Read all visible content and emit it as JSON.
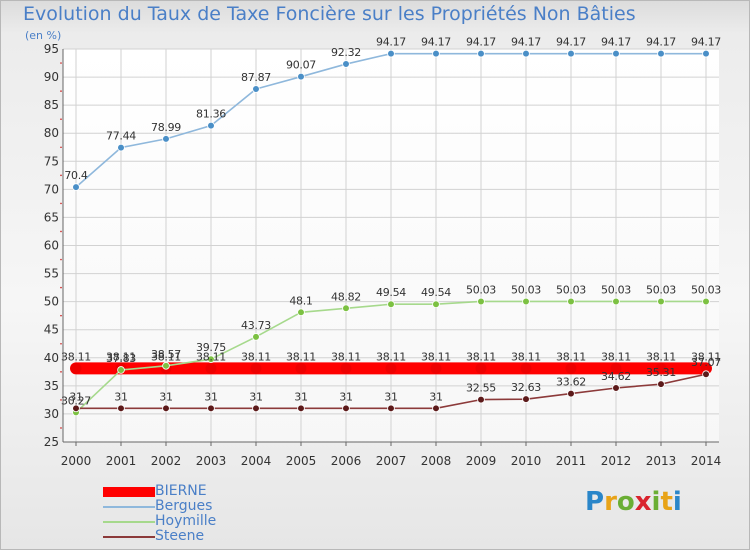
{
  "title": "Evolution du Taux de Taxe Foncière sur les Propriétés Non Bâties",
  "subtitle": "(en %)",
  "logo": {
    "letters": [
      "P",
      "r",
      "o",
      "x",
      "i",
      "t",
      "i"
    ],
    "colors": [
      "#2a86c9",
      "#e8a317",
      "#6aae34",
      "#d9232d",
      "#6aae34",
      "#e8a317",
      "#2a86c9"
    ]
  },
  "chart_data": {
    "type": "line",
    "title": "Evolution du Taux de Taxe Foncière sur les Propriétés Non Bâties",
    "subtitle": "(en %)",
    "xlabel": "",
    "ylabel": "",
    "ylim": [
      25,
      95
    ],
    "yticks": [
      25,
      30,
      35,
      40,
      45,
      50,
      55,
      60,
      65,
      70,
      75,
      80,
      85,
      90,
      95
    ],
    "grid": true,
    "legend_position": "bottom-left",
    "categories": [
      "2000",
      "2001",
      "2002",
      "2003",
      "2004",
      "2005",
      "2006",
      "2007",
      "2008",
      "2009",
      "2010",
      "2011",
      "2012",
      "2013",
      "2014"
    ],
    "series": [
      {
        "name": "BIERNE",
        "color": "#ff0000",
        "marker_color": "#ee0000",
        "bold": true,
        "values": [
          38.11,
          38.11,
          38.11,
          38.11,
          38.11,
          38.11,
          38.11,
          38.11,
          38.11,
          38.11,
          38.11,
          38.11,
          38.11,
          38.11,
          38.11
        ],
        "labels": [
          "38.11",
          "38.11",
          "38.11",
          "38.11",
          "38.11",
          "38.11",
          "38.11",
          "38.11",
          "38.11",
          "38.11",
          "38.11",
          "38.11",
          "38.11",
          "38.11",
          "38.11"
        ]
      },
      {
        "name": "Bergues",
        "color": "#8fb8dc",
        "marker_color": "#4a8fc7",
        "values": [
          70.4,
          77.44,
          78.99,
          81.36,
          87.87,
          90.07,
          92.32,
          94.17,
          94.17,
          94.17,
          94.17,
          94.17,
          94.17,
          94.17,
          94.17
        ],
        "labels": [
          "70.4",
          "77.44",
          "78.99",
          "81.36",
          "87.87",
          "90.07",
          "92.32",
          "94.17",
          "94.17",
          "94.17",
          "94.17",
          "94.17",
          "94.17",
          "94.17",
          "94.17"
        ]
      },
      {
        "name": "Hoymille",
        "color": "#a6d98c",
        "marker_color": "#7cc142",
        "values": [
          30.27,
          37.83,
          38.57,
          39.75,
          43.73,
          48.1,
          48.82,
          49.54,
          49.54,
          50.03,
          50.03,
          50.03,
          50.03,
          50.03,
          50.03
        ],
        "labels": [
          "30.27",
          "37.83",
          "38.57",
          "39.75",
          "43.73",
          "48.1",
          "48.82",
          "49.54",
          "49.54",
          "50.03",
          "50.03",
          "50.03",
          "50.03",
          "50.03",
          "50.03"
        ]
      },
      {
        "name": "Steene",
        "color": "#8c3a3a",
        "marker_color": "#5c1a1a",
        "values": [
          31,
          31,
          31,
          31,
          31,
          31,
          31,
          31,
          31,
          32.55,
          32.63,
          33.62,
          34.62,
          35.31,
          37.07
        ],
        "labels": [
          "31",
          "31",
          "31",
          "31",
          "31",
          "31",
          "31",
          "31",
          "31",
          "32.55",
          "32.63",
          "33.62",
          "34.62",
          "35.31",
          "37.07"
        ]
      }
    ]
  }
}
